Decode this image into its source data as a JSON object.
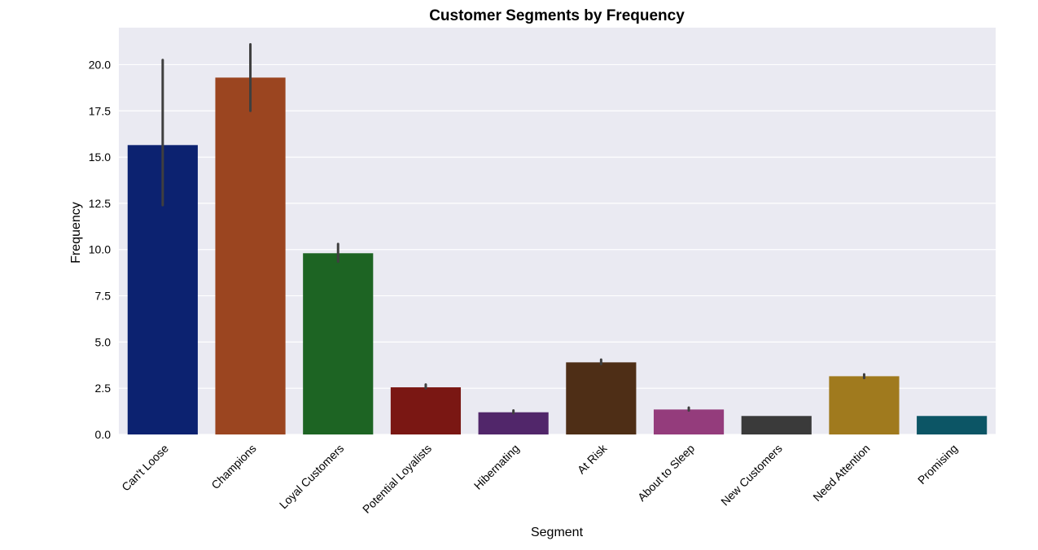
{
  "chart_data": {
    "type": "bar",
    "title": "Customer Segments by Frequency",
    "xlabel": "Segment",
    "ylabel": "Frequency",
    "ylim": [
      0,
      22
    ],
    "yticks": [
      "0.0",
      "2.5",
      "5.0",
      "7.5",
      "10.0",
      "12.5",
      "15.0",
      "17.5",
      "20.0"
    ],
    "grid": true,
    "categories": [
      "Can't Loose",
      "Champions",
      "Loyal Customers",
      "Potential Loyalists",
      "Hibernating",
      "At Risk",
      "About to Sleep",
      "New Customers",
      "Need Attention",
      "Promising"
    ],
    "values": [
      15.65,
      19.3,
      9.8,
      2.55,
      1.2,
      3.9,
      1.35,
      1.0,
      3.15,
      1.0
    ],
    "error_low": [
      12.4,
      17.5,
      9.35,
      2.5,
      1.15,
      3.8,
      1.3,
      1.0,
      3.05,
      1.0
    ],
    "error_high": [
      20.25,
      21.1,
      10.3,
      2.7,
      1.3,
      4.05,
      1.45,
      1.0,
      3.25,
      1.0
    ],
    "colors": [
      "#0c2270",
      "#9b4520",
      "#1d6423",
      "#7a1713",
      "#51266a",
      "#4e2e16",
      "#943c7c",
      "#3a3a3a",
      "#a07a1e",
      "#0c5565"
    ]
  }
}
